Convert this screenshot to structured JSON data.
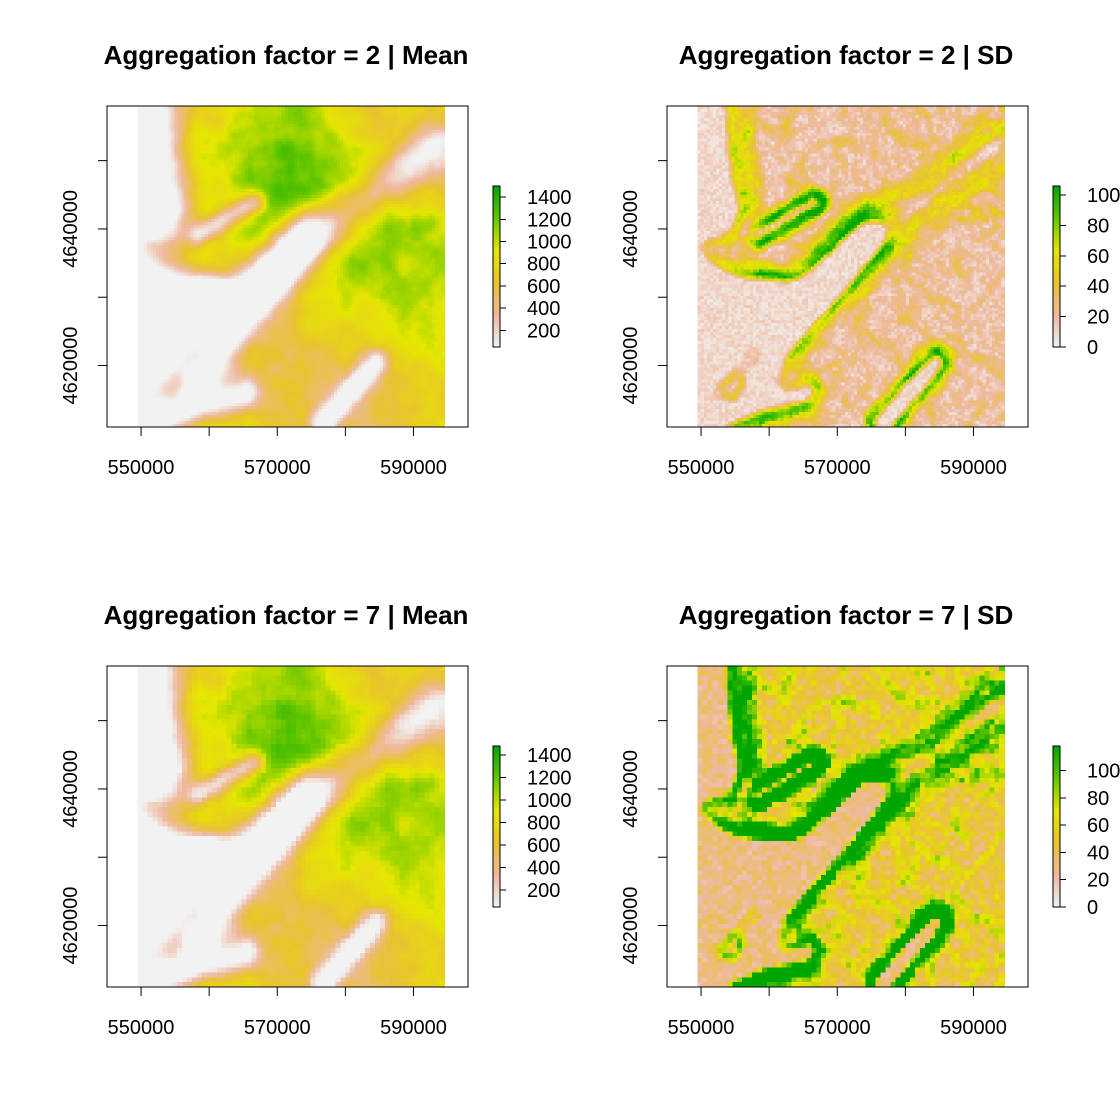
{
  "chart_data": [
    {
      "type": "heatmap",
      "title": "Aggregation factor = 2 | Mean",
      "statistic": "mean",
      "aggregation_factor": 2,
      "xlim": [
        545000,
        598000
      ],
      "ylim": [
        4611000,
        4658000
      ],
      "raster_extent": {
        "x": [
          549500,
          594500
        ],
        "y": [
          4611000,
          4658000
        ]
      },
      "x_ticks": [
        550000,
        560000,
        570000,
        580000,
        590000
      ],
      "x_tick_labels": [
        "550000",
        "",
        "570000",
        "",
        "590000"
      ],
      "y_ticks": [
        4620000,
        4630000,
        4640000,
        4650000
      ],
      "y_tick_labels": [
        "4620000",
        "",
        "4640000",
        ""
      ],
      "legend": {
        "min": 50,
        "max": 1500,
        "ticks": [
          200,
          400,
          600,
          800,
          1000,
          1200,
          1400
        ],
        "tick_labels": [
          "200",
          "400",
          "600",
          "800",
          "1000",
          "1200",
          "1400"
        ]
      },
      "color_ramp": [
        "#f2f2f2",
        "#eeb99f",
        "#e8c32e",
        "#e6e600",
        "#63c600",
        "#00a600"
      ],
      "grid": false
    },
    {
      "type": "heatmap",
      "title": "Aggregation factor = 2 | SD",
      "statistic": "sd",
      "aggregation_factor": 2,
      "xlim": [
        545000,
        598000
      ],
      "ylim": [
        4611000,
        4658000
      ],
      "raster_extent": {
        "x": [
          549500,
          594500
        ],
        "y": [
          4611000,
          4658000
        ]
      },
      "x_ticks": [
        550000,
        560000,
        570000,
        580000,
        590000
      ],
      "x_tick_labels": [
        "550000",
        "",
        "570000",
        "",
        "590000"
      ],
      "y_ticks": [
        4620000,
        4630000,
        4640000,
        4650000
      ],
      "y_tick_labels": [
        "4620000",
        "",
        "4640000",
        ""
      ],
      "legend": {
        "min": 0,
        "max": 106,
        "ticks": [
          0,
          20,
          40,
          60,
          80,
          100
        ],
        "tick_labels": [
          "0",
          "20",
          "40",
          "60",
          "80",
          "100"
        ]
      },
      "color_ramp": [
        "#f2f2f2",
        "#eeb99f",
        "#e8c32e",
        "#e6e600",
        "#63c600",
        "#00a600"
      ],
      "grid": false
    },
    {
      "type": "heatmap",
      "title": "Aggregation factor = 7 | Mean",
      "statistic": "mean",
      "aggregation_factor": 7,
      "xlim": [
        545000,
        598000
      ],
      "ylim": [
        4611000,
        4658000
      ],
      "raster_extent": {
        "x": [
          549500,
          594500
        ],
        "y": [
          4611000,
          4658000
        ]
      },
      "x_ticks": [
        550000,
        560000,
        570000,
        580000,
        590000
      ],
      "x_tick_labels": [
        "550000",
        "",
        "570000",
        "",
        "590000"
      ],
      "y_ticks": [
        4620000,
        4630000,
        4640000,
        4650000
      ],
      "y_tick_labels": [
        "4620000",
        "",
        "4640000",
        ""
      ],
      "legend": {
        "min": 50,
        "max": 1480,
        "ticks": [
          200,
          400,
          600,
          800,
          1000,
          1200,
          1400
        ],
        "tick_labels": [
          "200",
          "400",
          "600",
          "800",
          "1000",
          "1200",
          "1400"
        ]
      },
      "color_ramp": [
        "#f2f2f2",
        "#eeb99f",
        "#e8c32e",
        "#e6e600",
        "#63c600",
        "#00a600"
      ],
      "grid": false
    },
    {
      "type": "heatmap",
      "title": "Aggregation factor = 7 | SD",
      "statistic": "sd",
      "aggregation_factor": 7,
      "xlim": [
        545000,
        598000
      ],
      "ylim": [
        4611000,
        4658000
      ],
      "raster_extent": {
        "x": [
          549500,
          594500
        ],
        "y": [
          4611000,
          4658000
        ]
      },
      "x_ticks": [
        550000,
        560000,
        570000,
        580000,
        590000
      ],
      "x_tick_labels": [
        "550000",
        "",
        "570000",
        "",
        "590000"
      ],
      "y_ticks": [
        4620000,
        4630000,
        4640000,
        4650000
      ],
      "y_tick_labels": [
        "4620000",
        "",
        "4640000",
        ""
      ],
      "legend": {
        "min": 0,
        "max": 118,
        "ticks": [
          0,
          20,
          40,
          60,
          80,
          100
        ],
        "tick_labels": [
          "0",
          "20",
          "40",
          "60",
          "80",
          "100"
        ]
      },
      "color_ramp": [
        "#f2f2f2",
        "#eeb99f",
        "#e8c32e",
        "#e6e600",
        "#63c600",
        "#00a600"
      ],
      "grid": false
    }
  ]
}
